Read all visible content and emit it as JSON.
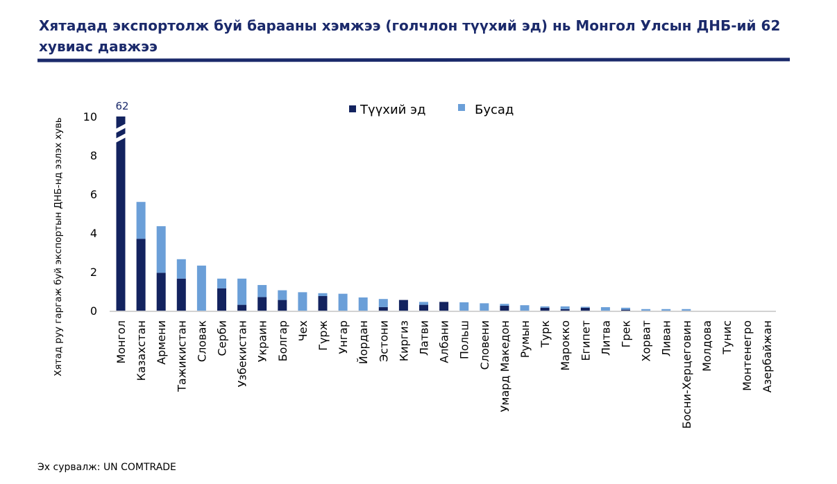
{
  "title": "Хятадад экспортолж буй барааны хэмжээ (голчлон түүхий эд) нь Монгол Улсын ДНБ-ий 62 хувиас давжээ",
  "source": "Эх сурвалж: UN COMTRADE",
  "colors": {
    "title": "#1b2a6b",
    "raw": "#13235f",
    "other": "#6b9fd8",
    "axis": "#000000"
  },
  "chart_data": {
    "type": "bar",
    "stacked": true,
    "ylabel": "Хятад руу гаргаж буй экспортын ДНБ-нд эзлэх хувь",
    "ylim": [
      0,
      10
    ],
    "yticks": [
      0,
      2,
      4,
      6,
      8,
      10
    ],
    "axis_break": true,
    "break_label": "62",
    "legend_position": "top",
    "categories": [
      "Монгол",
      "Казахстан",
      "Армени",
      "Тажикистан",
      "Словак",
      "Серби",
      "Узбекистан",
      "Украин",
      "Болгар",
      "Чех",
      "Гүрж",
      "Унгар",
      "Йордан",
      "Эстони",
      "Киргиз",
      "Латви",
      "Албани",
      "Польш",
      "Словени",
      "Умард Македон",
      "Румын",
      "Турк",
      "Марокко",
      "Египет",
      "Литва",
      "Грек",
      "Хорват",
      "Ливан",
      "Босни-Херцеговин",
      "Молдова",
      "Тунис",
      "Монтенегро",
      "Азербайжан"
    ],
    "series": [
      {
        "name": "Түүхий эд",
        "values": [
          62,
          3.7,
          1.95,
          1.65,
          0,
          1.15,
          0.3,
          0.7,
          0.55,
          0,
          0.75,
          0,
          0,
          0.18,
          0.55,
          0.3,
          0.45,
          0,
          0,
          0.25,
          0,
          0.15,
          0.08,
          0.15,
          0,
          0.05,
          0,
          0,
          0,
          0,
          0,
          0,
          0
        ]
      },
      {
        "name": "Бусад",
        "values": [
          0,
          1.9,
          2.4,
          1.0,
          2.32,
          0.5,
          1.35,
          0.62,
          0.5,
          0.95,
          0.15,
          0.87,
          0.68,
          0.42,
          0,
          0.15,
          0,
          0.43,
          0.38,
          0.1,
          0.28,
          0.07,
          0.14,
          0.05,
          0.18,
          0.1,
          0.08,
          0.08,
          0.08,
          0,
          0,
          0,
          0
        ]
      }
    ]
  }
}
